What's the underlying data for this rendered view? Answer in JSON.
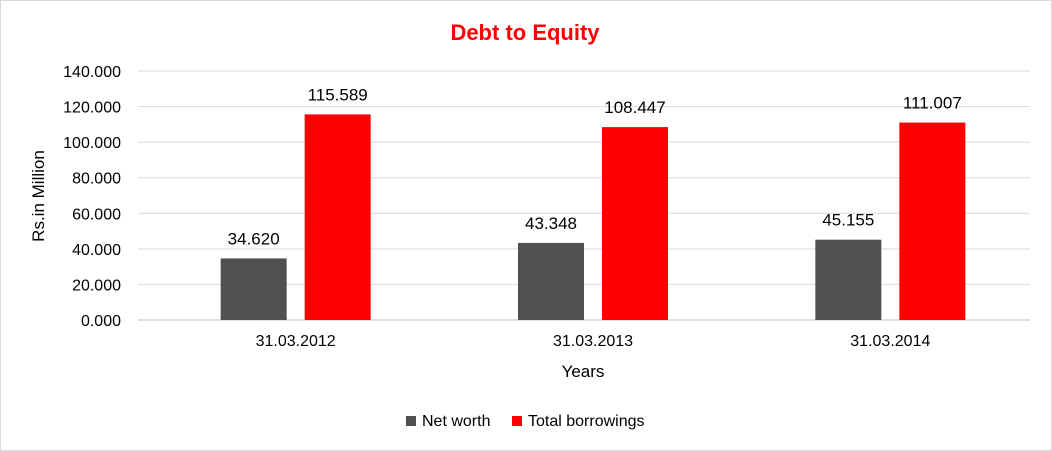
{
  "chart_data": {
    "type": "bar",
    "title": "Debt to Equity",
    "title_color": "#FF0000",
    "xlabel": "Years",
    "ylabel": "Rs.in Million",
    "categories": [
      "31.03.2012",
      "31.03.2013",
      "31.03.2014"
    ],
    "series": [
      {
        "name": "Net worth",
        "color": "#505050",
        "values": [
          34.62,
          43.348,
          45.155
        ],
        "labels": [
          "34.620",
          "43.348",
          "45.155"
        ]
      },
      {
        "name": "Total borrowings",
        "color": "#FF0000",
        "values": [
          115.589,
          108.447,
          111.007
        ],
        "labels": [
          "115.589",
          "108.447",
          "111.007"
        ]
      }
    ],
    "ylim": [
      0,
      140
    ],
    "yticks": [
      "0.000",
      "20.000",
      "40.000",
      "60.000",
      "80.000",
      "100.000",
      "120.000",
      "140.000"
    ],
    "grid": true,
    "legend": "bottom"
  }
}
